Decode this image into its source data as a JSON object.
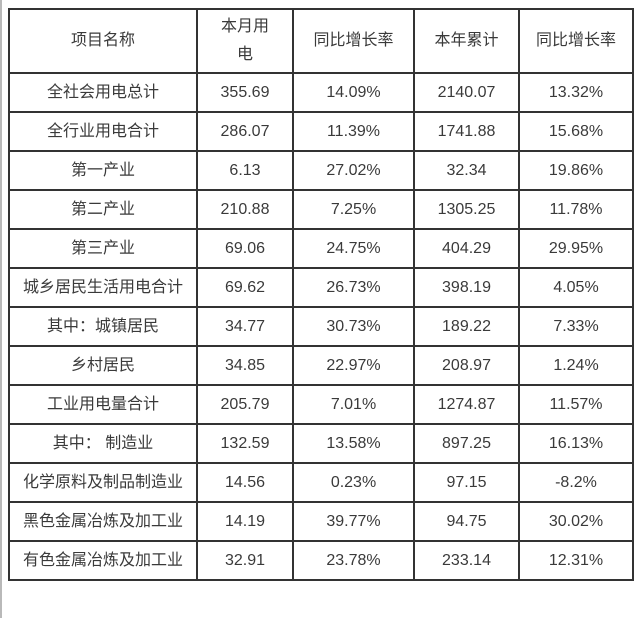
{
  "page": {
    "background": "#ffffff",
    "left_rule_color": "#b9b9b9",
    "border_color": "#333333",
    "text_color": "#3a3a3a"
  },
  "chart_data": {
    "type": "table",
    "title": "",
    "columns": [
      "项目名称",
      "本月用电",
      "同比增长率",
      "本年累计",
      "同比增长率"
    ],
    "rows": [
      [
        "全社会用电总计",
        "355.69",
        "14.09%",
        "2140.07",
        "13.32%"
      ],
      [
        "全行业用电合计",
        "286.07",
        "11.39%",
        "1741.88",
        "15.68%"
      ],
      [
        "第一产业",
        "6.13",
        "27.02%",
        "32.34",
        "19.86%"
      ],
      [
        "第二产业",
        "210.88",
        "7.25%",
        "1305.25",
        "11.78%"
      ],
      [
        "第三产业",
        "69.06",
        "24.75%",
        "404.29",
        "29.95%"
      ],
      [
        "城乡居民生活用电合计",
        "69.62",
        "26.73%",
        "398.19",
        "4.05%"
      ],
      [
        "其中：城镇居民",
        "34.77",
        "30.73%",
        "189.22",
        "7.33%"
      ],
      [
        "乡村居民",
        "34.85",
        "22.97%",
        "208.97",
        "1.24%"
      ],
      [
        "工业用电量合计",
        "205.79",
        "7.01%",
        "1274.87",
        "11.57%"
      ],
      [
        "其中： 制造业",
        "132.59",
        "13.58%",
        "897.25",
        "16.13%"
      ],
      [
        "化学原料及制品制造业",
        "14.56",
        "0.23%",
        "97.15",
        "-8.2%"
      ],
      [
        "黑色金属冶炼及加工业",
        "14.19",
        "39.77%",
        "94.75",
        "30.02%"
      ],
      [
        "有色金属冶炼及加工业",
        "32.91",
        "23.78%",
        "233.14",
        "12.31%"
      ]
    ]
  }
}
